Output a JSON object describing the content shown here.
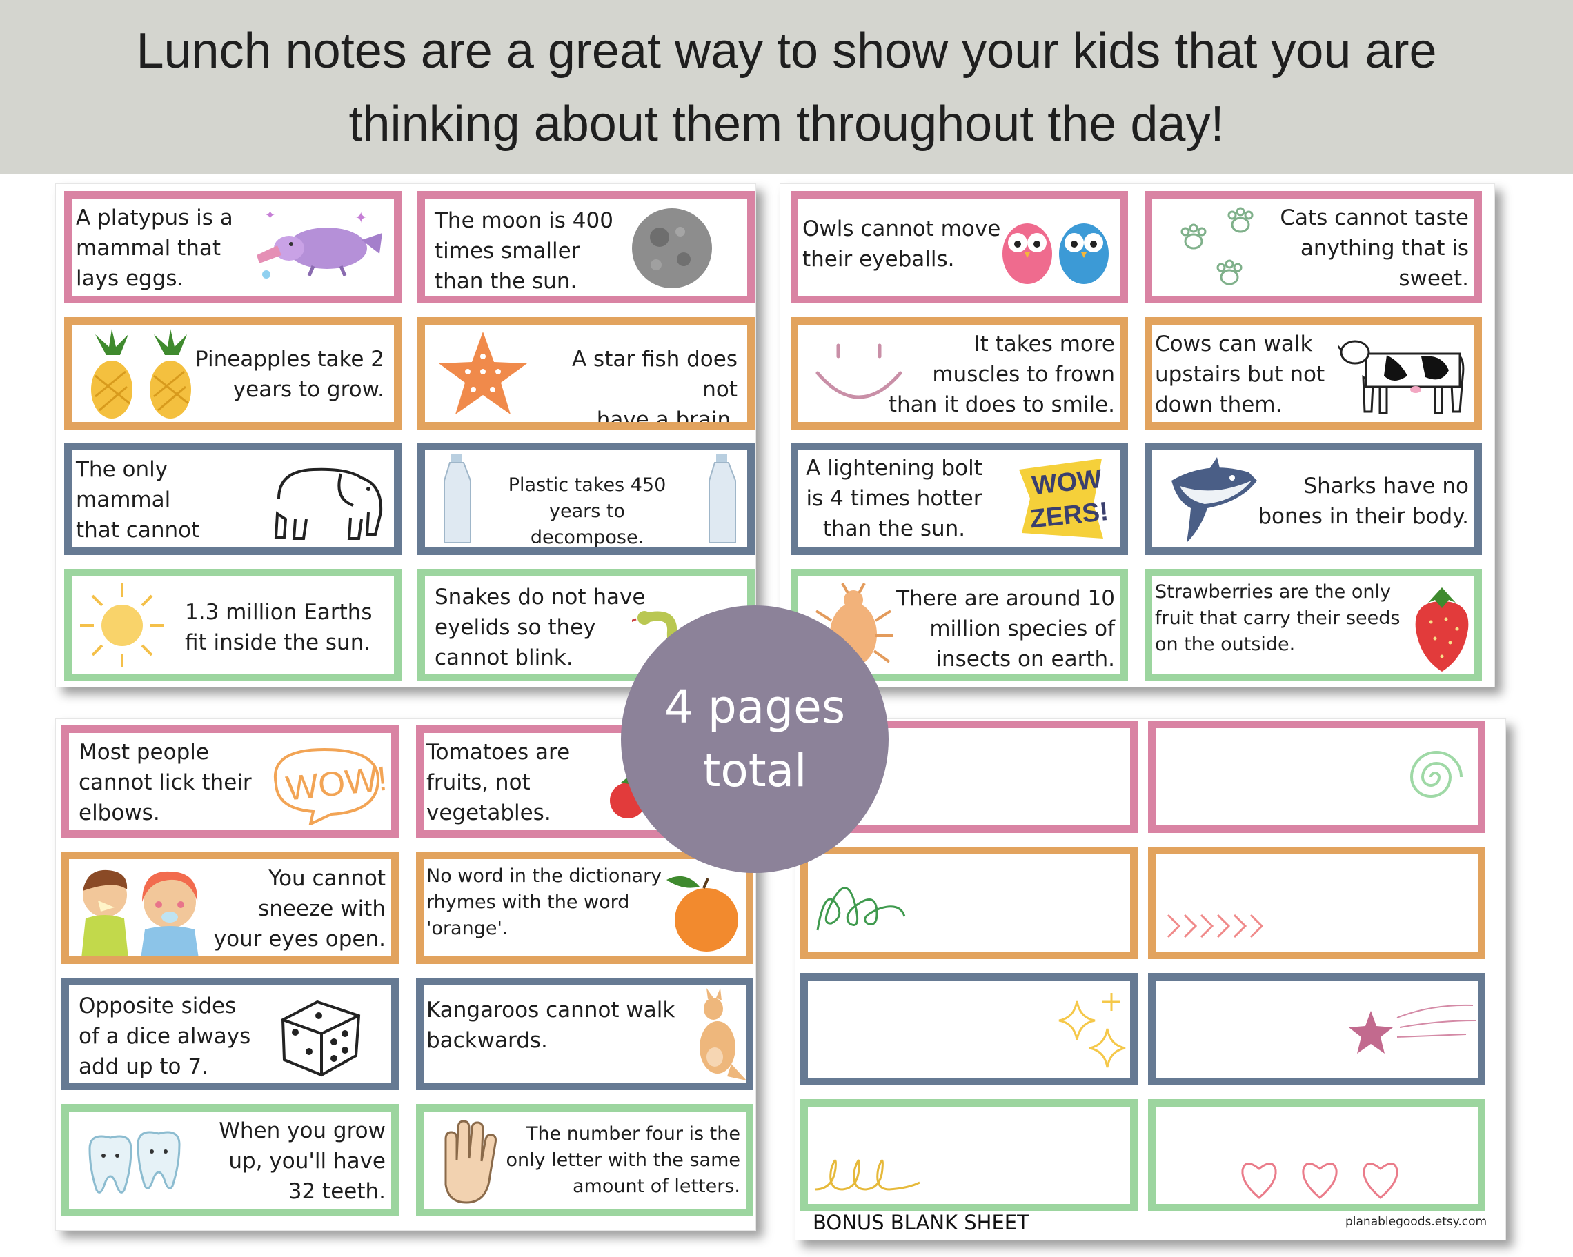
{
  "banner": {
    "text": "Lunch notes are a great way to show your kids that you are\nthinking about them throughout the day!"
  },
  "badge": {
    "line1": "4 pages",
    "line2": "total"
  },
  "sheets": {
    "sheet1": [
      {
        "text": "A platypus is a\nmammal that\nlays eggs.",
        "icon": "platypus-icon"
      },
      {
        "text": "The moon is 400\ntimes smaller\nthan the sun.",
        "icon": "moon-icon"
      },
      {
        "text": "Pineapples take 2\nyears to grow.",
        "icon": "pineapple-icon"
      },
      {
        "text": "A star fish does not\nhave a brain.",
        "icon": "starfish-icon"
      },
      {
        "text": "The only mammal\nthat cannot jump\nis an elephant.",
        "icon": "elephant-icon"
      },
      {
        "text": "Plastic takes 450\nyears to decompose.",
        "icon": "bottle-icon"
      },
      {
        "text": "1.3 million Earths\nfit inside the sun.",
        "icon": "sun-icon"
      },
      {
        "text": "Snakes do not have\neyelids so  they\ncannot blink.",
        "icon": "snake-icon"
      }
    ],
    "sheet2": [
      {
        "text": "Owls cannot move\ntheir eyeballs.",
        "icon": "owls-icon"
      },
      {
        "text": "Cats cannot taste\nanything that is\nsweet.",
        "icon": "paw-prints-icon"
      },
      {
        "text": "It takes more\nmuscles to frown\nthan it does to smile.",
        "icon": "smile-icon"
      },
      {
        "text": "Cows can walk\nupstairs but not\ndown them.",
        "icon": "cow-icon"
      },
      {
        "text": "A lightening bolt\nis 4 times hotter\nthan the sun.",
        "icon": "wowzers-icon",
        "sticker": "WOW\nZERS!"
      },
      {
        "text": "Sharks have no\nbones in their body.",
        "icon": "shark-icon"
      },
      {
        "text": "There are around 10\nmillion species of\ninsects on earth.",
        "icon": "bug-icon"
      },
      {
        "text": "Strawberries are the only\nfruit that carry their seeds\non the outside.",
        "icon": "strawberry-icon"
      }
    ],
    "sheet3": [
      {
        "text": "Most people\ncannot lick their\nelbows.",
        "icon": "wow-bubble-icon",
        "sticker": "WOW!"
      },
      {
        "text": "Tomatoes are\nfruits, not\nvegetables.",
        "icon": "tomato-icon"
      },
      {
        "text": "You cannot\nsneeze with\nyour eyes open.",
        "icon": "sneezing-kids-icon"
      },
      {
        "text": "No word in the dictionary\nrhymes with the word\n'orange'.",
        "icon": "orange-icon"
      },
      {
        "text": "Opposite sides\nof a dice always\nadd up to 7.",
        "icon": "dice-icon"
      },
      {
        "text": "Kangaroos cannot walk\nbackwards.",
        "icon": "kangaroo-icon"
      },
      {
        "text": "When you grow\nup, you'll have\n32 teeth.",
        "icon": "teeth-icon"
      },
      {
        "text": "The number four is the\nonly letter with the same\namount of letters.",
        "icon": "four-fingers-icon"
      }
    ],
    "sheet4": {
      "label": "BONUS BLANK SHEET",
      "site": "planablegoods.etsy.com",
      "cards": [
        "blank",
        "spiral-doodle-icon",
        "loops-doodle-icon",
        "chevrons-doodle-icon",
        "sparkles-doodle-icon",
        "shooting-star-icon",
        "cursive-loops-icon",
        "hearts-doodle-icon"
      ]
    }
  },
  "colors": {
    "pink": "#d983a3",
    "orange": "#e2a35e",
    "slate": "#667a93",
    "green": "#9cd59f",
    "badge": "#8c8299",
    "banner": "#d4d5cf"
  }
}
